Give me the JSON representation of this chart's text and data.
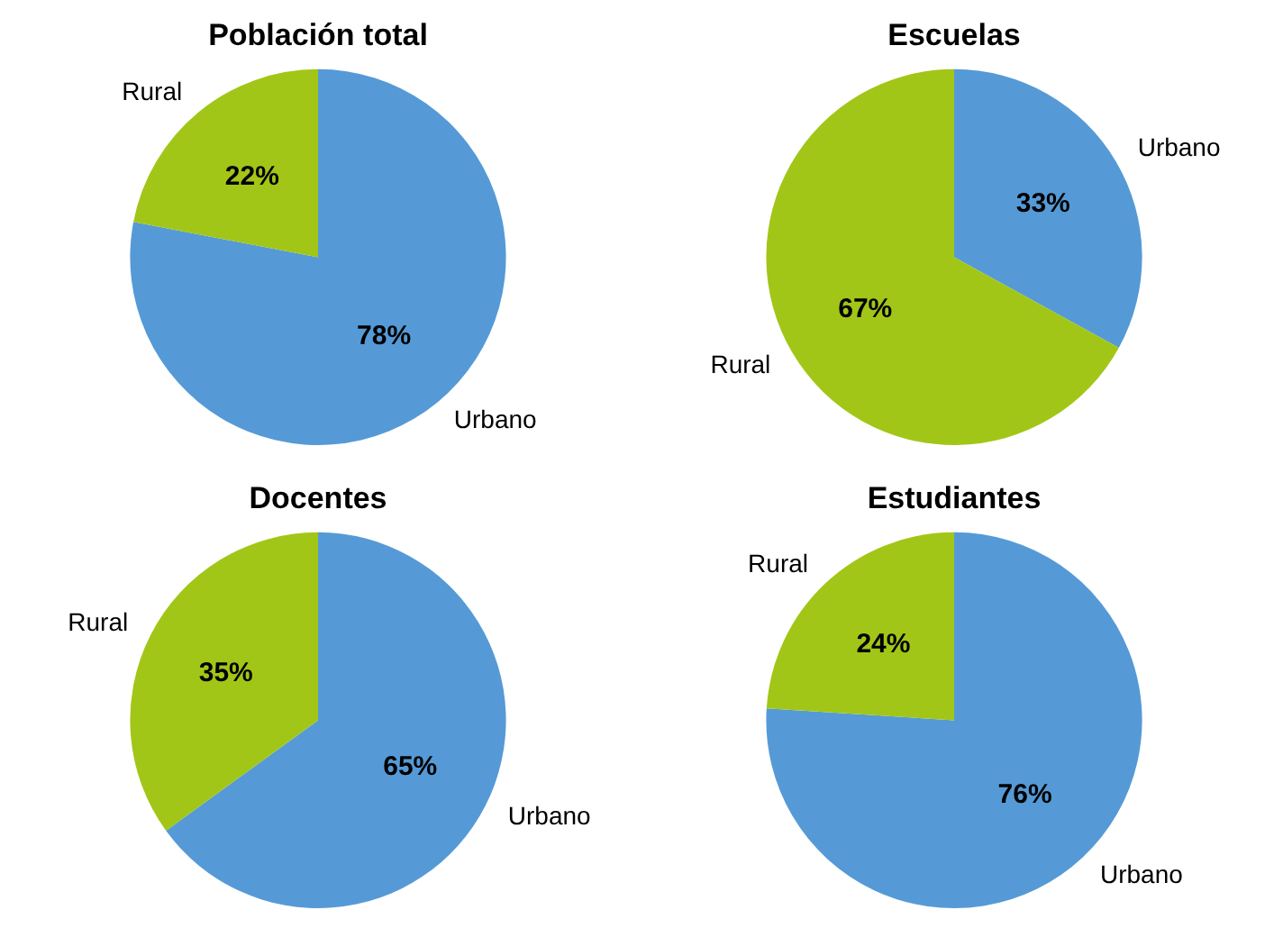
{
  "chart_data": [
    {
      "type": "pie",
      "title": "Población total",
      "categories": [
        "Urbano",
        "Rural"
      ],
      "values": [
        78,
        22
      ],
      "colors": [
        "#559ad6",
        "#a2c617"
      ],
      "value_labels": [
        "78%",
        "22%"
      ]
    },
    {
      "type": "pie",
      "title": "Escuelas",
      "categories": [
        "Urbano",
        "Rural"
      ],
      "values": [
        33,
        67
      ],
      "colors": [
        "#559ad6",
        "#a2c617"
      ],
      "value_labels": [
        "33%",
        "67%"
      ]
    },
    {
      "type": "pie",
      "title": "Docentes",
      "categories": [
        "Urbano",
        "Rural"
      ],
      "values": [
        65,
        35
      ],
      "colors": [
        "#559ad6",
        "#a2c617"
      ],
      "value_labels": [
        "65%",
        "35%"
      ]
    },
    {
      "type": "pie",
      "title": "Estudiantes",
      "categories": [
        "Urbano",
        "Rural"
      ],
      "values": [
        76,
        24
      ],
      "colors": [
        "#559ad6",
        "#a2c617"
      ],
      "value_labels": [
        "76%",
        "24%"
      ]
    }
  ]
}
